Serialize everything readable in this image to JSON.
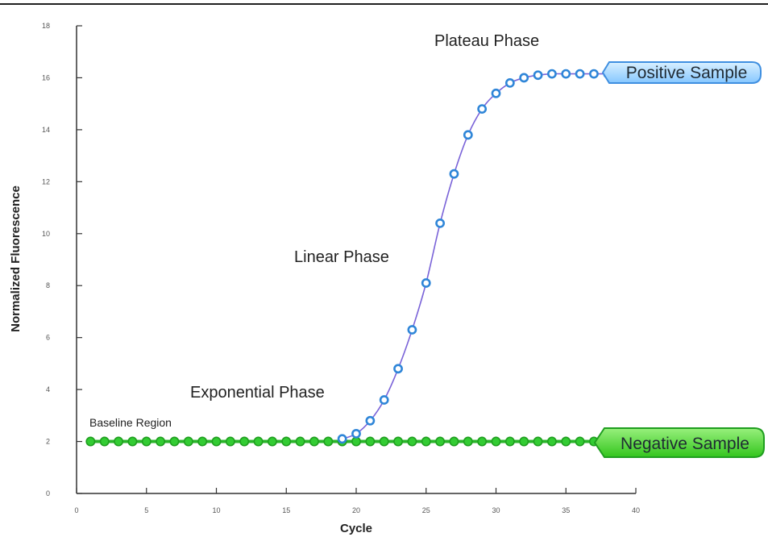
{
  "chart_data": {
    "type": "line",
    "xlabel": "Cycle",
    "ylabel": "Normalized Fluorescence",
    "xlim": [
      0,
      40
    ],
    "ylim": [
      0,
      18
    ],
    "x_ticks": [
      0,
      5,
      10,
      15,
      20,
      25,
      30,
      35,
      40
    ],
    "y_ticks": [
      0,
      2,
      4,
      6,
      8,
      10,
      12,
      14,
      16,
      18
    ],
    "grid": false,
    "annotations": {
      "plateau": "Plateau Phase",
      "linear": "Linear Phase",
      "exponential": "Exponential Phase",
      "baseline": "Baseline Region"
    },
    "series": [
      {
        "name": "Positive Sample",
        "color": "#7a63d8",
        "marker_color": "#2f86d8",
        "x": [
          19,
          20,
          21,
          22,
          23,
          24,
          25,
          26,
          27,
          28,
          29,
          30,
          31,
          32,
          33,
          34,
          35,
          36,
          37,
          38
        ],
        "values": [
          2.1,
          2.3,
          2.8,
          3.6,
          4.8,
          6.3,
          8.1,
          10.4,
          12.3,
          13.8,
          14.8,
          15.4,
          15.8,
          16.0,
          16.1,
          16.15,
          16.15,
          16.15,
          16.15,
          16.15
        ]
      },
      {
        "name": "Negative Sample",
        "color": "#2ab52a",
        "marker_color": "#1f9e1f",
        "x": [
          1,
          2,
          3,
          4,
          5,
          6,
          7,
          8,
          9,
          10,
          11,
          12,
          13,
          14,
          15,
          16,
          17,
          18,
          19,
          20,
          21,
          22,
          23,
          24,
          25,
          26,
          27,
          28,
          29,
          30,
          31,
          32,
          33,
          34,
          35,
          36,
          37,
          38
        ],
        "values": [
          2,
          2,
          2,
          2,
          2,
          2,
          2,
          2,
          2,
          2,
          2,
          2,
          2,
          2,
          2,
          2,
          2,
          2,
          2,
          2,
          2,
          2,
          2,
          2,
          2,
          2,
          2,
          2,
          2,
          2,
          2,
          2,
          2,
          2,
          2,
          2,
          2,
          2
        ]
      }
    ],
    "badges": {
      "positive": "Positive Sample",
      "negative": "Negative Sample"
    }
  },
  "colors": {
    "positive_badge_fill": "#9fd5ff",
    "positive_badge_stroke": "#3f8fe0",
    "negative_badge_fill": "#56d93a",
    "negative_badge_stroke": "#1f9e1f",
    "axis": "#333333"
  }
}
